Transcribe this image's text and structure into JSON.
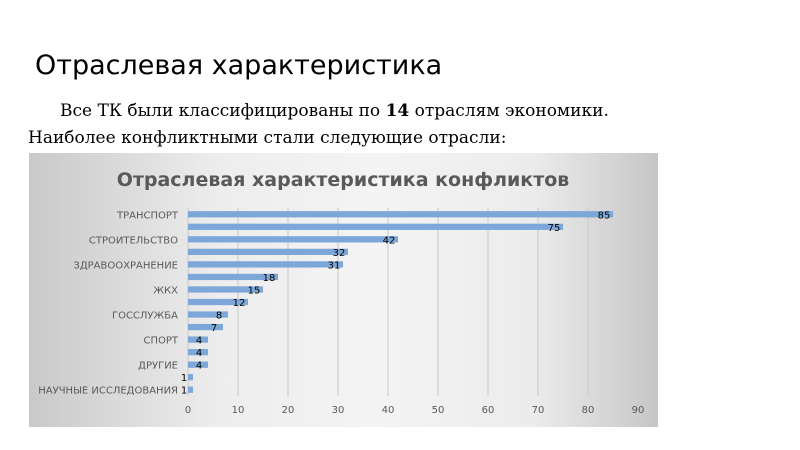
{
  "slide": {
    "title": "Отраслевая характеристика",
    "intro_before": "Все ТК были классифицированы по ",
    "intro_bold": "14",
    "intro_after": " отраслям экономики. Наиболее конфликтными стали следующие отрасли:"
  },
  "chart_data": {
    "type": "bar",
    "orientation": "horizontal",
    "title": "Отраслевая характеристика конфликтов",
    "categories": [
      "ТРАНСПОРТ",
      "",
      "СТРОИТЕЛЬСТВО",
      "",
      "ЗДРАВООХРАНЕНИЕ",
      "",
      "ЖКХ",
      "",
      "ГОССЛУЖБА",
      "",
      "СПОРТ",
      "",
      "ДРУГИЕ",
      "",
      "НАУЧНЫЕ ИССЛЕДОВАНИЯ"
    ],
    "values": [
      85,
      75,
      42,
      32,
      31,
      18,
      15,
      12,
      8,
      7,
      4,
      4,
      4,
      1,
      1
    ],
    "x_ticks": [
      "0",
      "10",
      "20",
      "30",
      "40",
      "50",
      "60",
      "70",
      "80",
      "90"
    ],
    "xlim": [
      0,
      90
    ],
    "grid": true,
    "bar_color": "#7da7d8"
  }
}
